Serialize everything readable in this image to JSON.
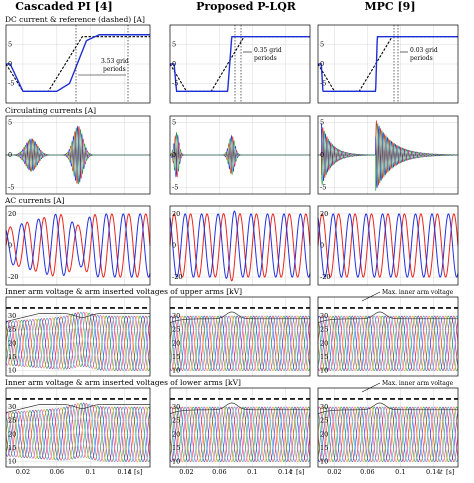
{
  "columns": [
    {
      "title": "Cascaded PI [4]",
      "key": "pi"
    },
    {
      "title": "Proposed P-LQR",
      "key": "lqr"
    },
    {
      "title": "MPC [9]",
      "key": "mpc"
    }
  ],
  "rows": [
    {
      "title": "DC current & reference (dashed) [A]",
      "ylim": [
        -10,
        10
      ],
      "yticks": [
        -5,
        0,
        5
      ]
    },
    {
      "title": "Circulating currents [A]",
      "ylim": [
        -6,
        6
      ],
      "yticks": [
        -5,
        0,
        5
      ]
    },
    {
      "title": "AC currents [A]",
      "ylim": [
        -25,
        25
      ],
      "yticks": [
        -20,
        0,
        20
      ]
    },
    {
      "title": "Inner arm voltage & arm inserted voltages of upper arms [kV]",
      "ylim": [
        8,
        37
      ],
      "yticks": [
        10,
        15,
        20,
        25,
        30
      ]
    },
    {
      "title": "Inner arm voltage & arm inserted voltages of lower arms [kV]",
      "ylim": [
        8,
        37
      ],
      "yticks": [
        10,
        15,
        20,
        25,
        30
      ]
    }
  ],
  "xaxis": {
    "xlim": [
      0,
      0.17
    ],
    "xticks": [
      0.02,
      0.06,
      0.1,
      0.14
    ],
    "xlabel_italic": "t",
    "xlabel_unit": "[s]"
  },
  "annotations": {
    "pi_dc": "3.53 grid periods",
    "lqr_dc": "0.35 grid periods",
    "mpc_dc": "0.03 grid periods",
    "max_voltage_upper": "Max. inner arm voltage",
    "max_voltage_lower": "Max. inner arm voltage"
  },
  "colors": {
    "dc": "#1f2fd6",
    "ref": "#000000",
    "red": "#e8261e",
    "blue": "#2330e0",
    "green": "#1f9a2c",
    "orange": "#f08c1a",
    "magenta": "#c43cc4",
    "cyan": "#1aa6c8",
    "grid": "#cfcfcf"
  },
  "chart_data": {
    "type": "line",
    "subplots": "5x3 grid of time-domain waveforms (t in s)",
    "dc_reference": {
      "t": [
        0.0,
        0.02,
        0.05,
        0.09,
        0.17
      ],
      "i": [
        0,
        -7,
        -7,
        7,
        7
      ]
    },
    "dc_current": {
      "pi": {
        "t": [
          0.0,
          0.005,
          0.02,
          0.06,
          0.075,
          0.095,
          0.11,
          0.17
        ],
        "i": [
          0,
          0,
          -7,
          -7,
          -5,
          6,
          7.5,
          7.5
        ]
      },
      "lqr": {
        "t": [
          0.0,
          0.005,
          0.008,
          0.07,
          0.075,
          0.17
        ],
        "i": [
          0,
          0,
          -7,
          -7,
          7,
          7
        ]
      },
      "mpc": {
        "t": [
          0.0,
          0.004,
          0.006,
          0.07,
          0.072,
          0.17
        ],
        "i": [
          0,
          0,
          -7,
          -7,
          7,
          7
        ]
      }
    },
    "ac_current_amplitude_A": 20,
    "grid_frequency_hz": 50,
    "max_inner_arm_voltage_kV": 33
  }
}
